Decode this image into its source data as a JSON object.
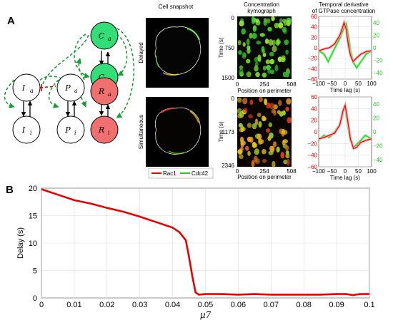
{
  "panel_a": {
    "letter": "A",
    "network": {
      "nodes": [
        {
          "label": "I_a",
          "main": "I",
          "sub": "a",
          "color": "#ffffff"
        },
        {
          "label": "I_i",
          "main": "I",
          "sub": "i",
          "color": "#ffffff"
        },
        {
          "label": "P_a",
          "main": "P",
          "sub": "a",
          "color": "#ffffff"
        },
        {
          "label": "P_i",
          "main": "P",
          "sub": "i",
          "color": "#ffffff"
        },
        {
          "label": "C_a",
          "main": "C",
          "sub": "a",
          "color": "#33dd77"
        },
        {
          "label": "C_i",
          "main": "C",
          "sub": "i",
          "color": "#33dd77"
        },
        {
          "label": "R_a",
          "main": "R",
          "sub": "a",
          "color": "#f07070"
        },
        {
          "label": "R_i",
          "main": "R",
          "sub": "i",
          "color": "#f07070"
        }
      ]
    },
    "snapshot_title": "Cell snapshot",
    "row_labels": [
      "Delayed",
      "Simultaneous"
    ],
    "legend": [
      {
        "name": "Rac1",
        "color": "#e60000"
      },
      {
        "name": "Cdc42",
        "color": "#22cc22"
      }
    ],
    "kymograph": {
      "title_line1": "Concentration",
      "title_line2": "kymograph",
      "ylabel": "Time (s)",
      "xlabel": "Position on perimeter",
      "x_ticks": [
        "0",
        "254",
        "508"
      ],
      "top_y_ticks": [
        "0",
        "750",
        "1500"
      ],
      "bottom_y_ticks": [
        "0",
        "1173",
        "2346"
      ]
    },
    "derivative": {
      "title_line1": "Temporal derivative",
      "title_line2": "of GTPase concentration",
      "xlabel": "Time lag (s)",
      "x_ticks": [
        "−100",
        "−50",
        "0",
        "50",
        "100"
      ],
      "left_ticks": [
        "60",
        "40",
        "20",
        "0",
        "−20",
        "−40",
        "−60"
      ],
      "right_ticks": [
        "40",
        "20",
        "0",
        "−20",
        "−40"
      ],
      "left_color": "#e60000",
      "right_color": "#22cc22"
    }
  },
  "panel_b": {
    "letter": "B",
    "chart_data": {
      "type": "line",
      "xlabel": "μ7",
      "ylabel": "Delay (s)",
      "xlim": [
        0,
        0.1
      ],
      "ylim": [
        0,
        20
      ],
      "x_ticks": [
        "0",
        "0.01",
        "0.02",
        "0.03",
        "0.04",
        "0.05",
        "0.06",
        "0.07",
        "0.08",
        "0.09",
        "0.1"
      ],
      "y_ticks": [
        "0",
        "5",
        "10",
        "15",
        "20"
      ],
      "grid": true,
      "color": "#e60000",
      "series": [
        {
          "x": [
            0,
            0.005,
            0.01,
            0.015,
            0.02,
            0.025,
            0.03,
            0.035,
            0.04,
            0.042,
            0.044,
            0.045,
            0.046,
            0.047,
            0.048,
            0.05,
            0.055,
            0.06,
            0.065,
            0.07,
            0.075,
            0.08,
            0.085,
            0.09,
            0.093,
            0.095,
            0.097,
            0.1
          ],
          "y": [
            19.8,
            18.8,
            17.8,
            17.2,
            16.4,
            15.7,
            14.8,
            13.8,
            12.8,
            12.0,
            10.5,
            7.5,
            4.0,
            1.0,
            0.6,
            0.7,
            0.7,
            0.6,
            0.7,
            0.6,
            0.6,
            0.6,
            0.6,
            0.7,
            0.7,
            0.5,
            0.7,
            0.7
          ]
        }
      ]
    }
  }
}
